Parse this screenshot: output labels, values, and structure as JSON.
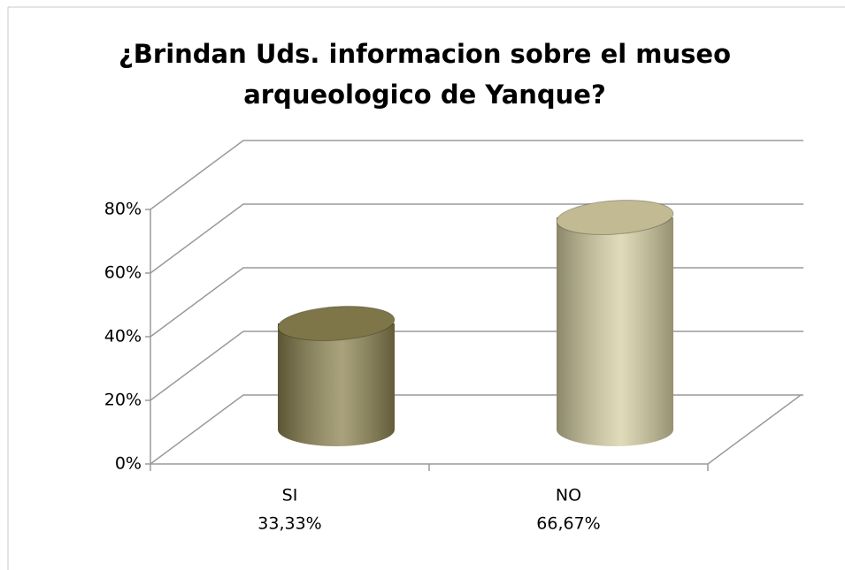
{
  "chart_data": {
    "type": "bar3d",
    "title": "¿Brindan Uds. informacion sobre el museo arqueologico de Yanque?",
    "categories": [
      "SI",
      "NO"
    ],
    "values": [
      33.33,
      66.67
    ],
    "value_labels": [
      "33,33%",
      "66,67%"
    ],
    "colors": [
      "#8c8350",
      "#d6cfa2"
    ],
    "ylim": [
      0,
      80
    ],
    "yticks": [
      {
        "value": 0,
        "label": "0%"
      },
      {
        "value": 20,
        "label": "20%"
      },
      {
        "value": 40,
        "label": "40%"
      },
      {
        "value": 60,
        "label": "60%"
      },
      {
        "value": 80,
        "label": "80%"
      }
    ],
    "grid": true
  }
}
